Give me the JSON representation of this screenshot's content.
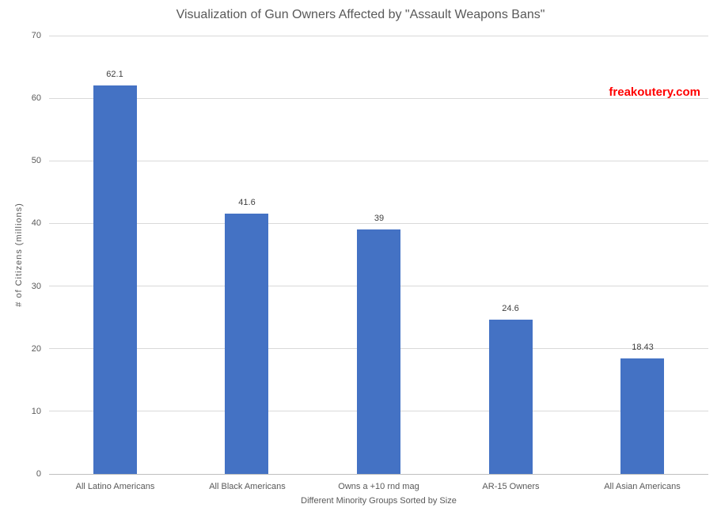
{
  "title": "Visualization of Gun Owners Affected by \"Assault Weapons Bans\"",
  "watermark": {
    "text": "freakoutery.com",
    "color": "#FF0000"
  },
  "chart_data": {
    "type": "bar",
    "title": "Visualization of Gun Owners Affected by \"Assault Weapons Bans\"",
    "categories": [
      "All Latino Americans",
      "All Black Americans",
      "Owns a +10 rnd mag",
      "AR-15 Owners",
      "All Asian Americans"
    ],
    "values": [
      62.1,
      41.6,
      39,
      24.6,
      18.43
    ],
    "value_labels": [
      "62.1",
      "41.6",
      "39",
      "24.6",
      "18.43"
    ],
    "xlabel": "Different Minority Groups Sorted by Size",
    "ylabel": "# of Citizens (millions)",
    "ylim": [
      0,
      70
    ],
    "ytick_interval": 10,
    "yticks": [
      "0",
      "10",
      "20",
      "30",
      "40",
      "50",
      "60",
      "70"
    ],
    "grid": true,
    "legend": "none",
    "bar_color": "#4472C4",
    "gridline_color": "#d9d9d9"
  }
}
